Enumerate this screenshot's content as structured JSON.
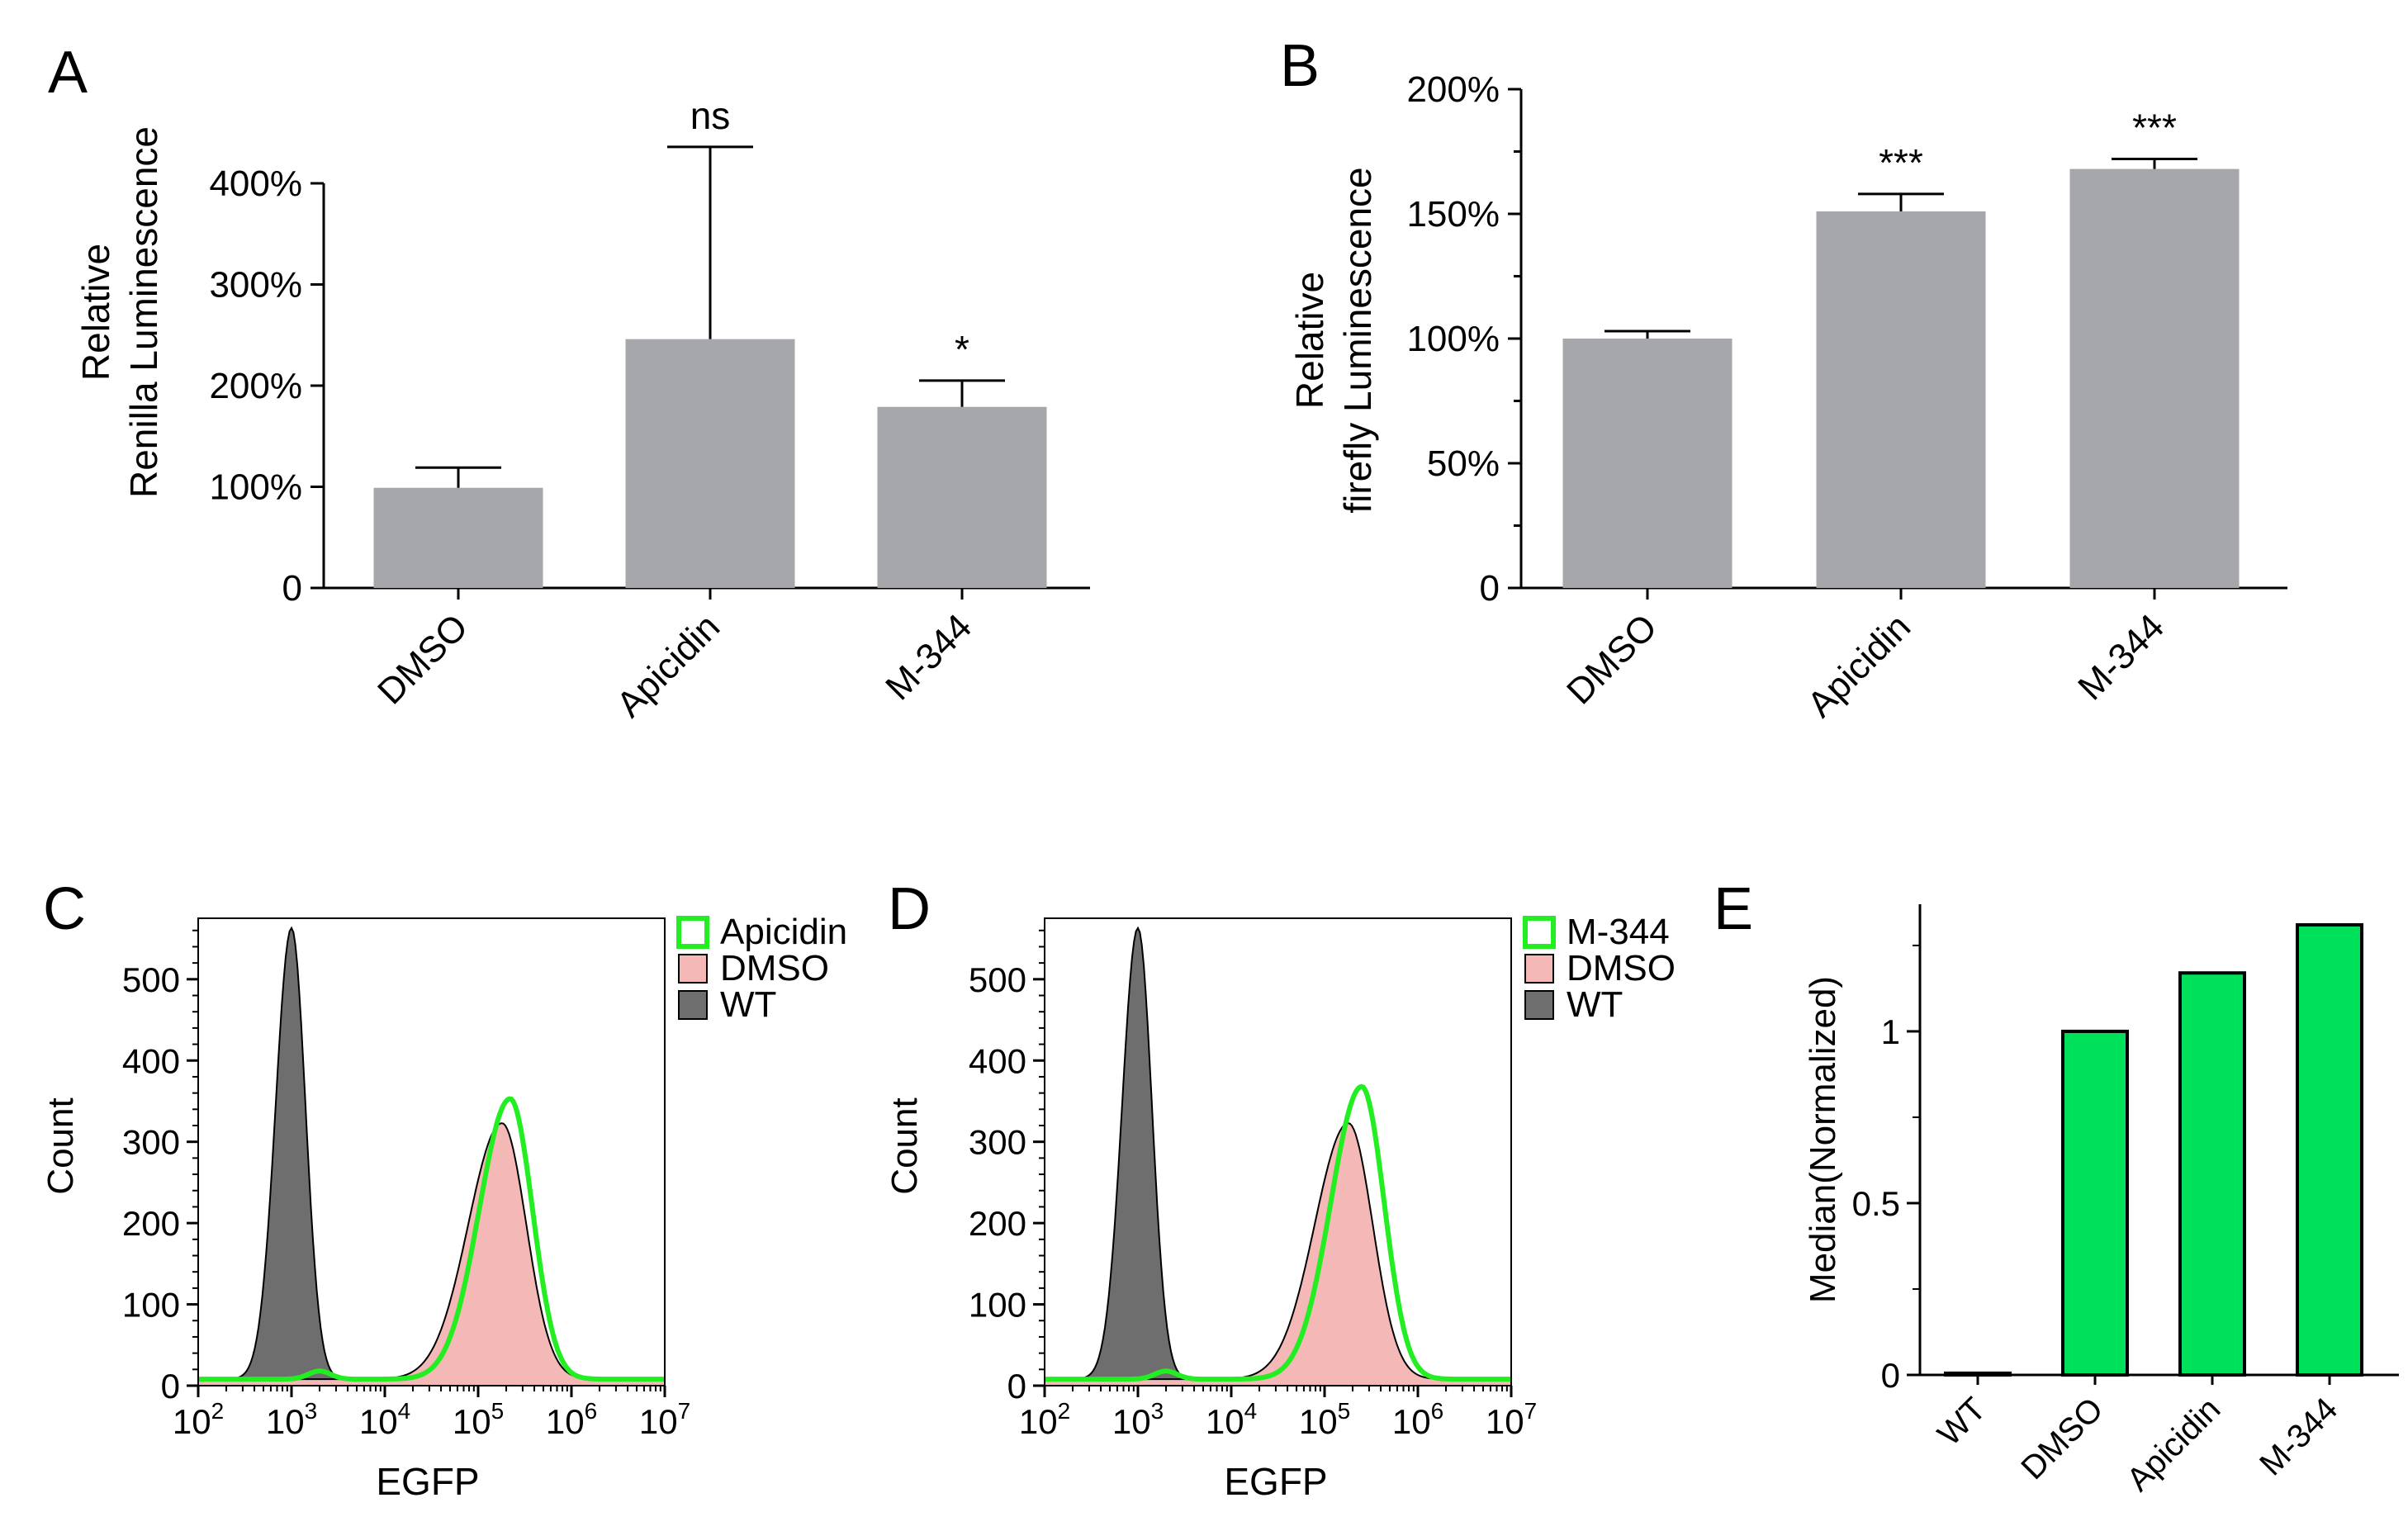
{
  "colors": {
    "bar_gray": "#a6a7ab",
    "bar_green": "#00e05a",
    "edge_dark": "#000000",
    "wt_fill": "#6e6e6e",
    "dmso_fill": "#f4b9b6",
    "green_line": "#22ee22"
  },
  "panels": {
    "A": {
      "letter": "A",
      "ylabel_line1": "Relative",
      "ylabel_line2": "Renilla Luminescence",
      "tick_labels": [
        "0",
        "100%",
        "200%",
        "300%",
        "400%"
      ],
      "sig": [
        "",
        "ns",
        "*"
      ]
    },
    "B": {
      "letter": "B",
      "ylabel_line1": "Relative",
      "ylabel_line2": "firefly Luminescence",
      "tick_labels": [
        "0",
        "50%",
        "100%",
        "150%",
        "200%"
      ],
      "sig": [
        "",
        "***",
        "***"
      ]
    },
    "C": {
      "letter": "C",
      "ylabel": "Count",
      "xlabel": "EGFP",
      "y_tick_labels": [
        "0",
        "100",
        "200",
        "300",
        "400",
        "500"
      ],
      "legend": [
        "Apicidin",
        "DMSO",
        "WT"
      ]
    },
    "D": {
      "letter": "D",
      "ylabel": "Count",
      "xlabel": "EGFP",
      "y_tick_labels": [
        "0",
        "100",
        "200",
        "300",
        "400",
        "500"
      ],
      "legend": [
        "M-344",
        "DMSO",
        "WT"
      ]
    },
    "E": {
      "letter": "E",
      "ylabel": "Median(Normalized)",
      "tick_labels": [
        "0",
        "0.5",
        "1"
      ]
    }
  },
  "chart_data": [
    {
      "panel": "A",
      "type": "bar",
      "categories": [
        "DMSO",
        "Apicidin",
        "M-344"
      ],
      "values": [
        99,
        246,
        179
      ],
      "errors": [
        20,
        190,
        26
      ],
      "ylim": [
        0,
        400
      ],
      "yunit": "%",
      "significance": [
        "",
        "ns",
        "*"
      ]
    },
    {
      "panel": "B",
      "type": "bar",
      "categories": [
        "DMSO",
        "Apicidin",
        "M-344"
      ],
      "values": [
        100,
        151,
        168
      ],
      "errors": [
        3,
        7,
        4
      ],
      "ylim": [
        0,
        200
      ],
      "yunit": "%",
      "significance": [
        "",
        "***",
        "***"
      ]
    },
    {
      "panel": "C",
      "type": "area",
      "x_scale": "log10",
      "xlim": [
        100,
        10000000
      ],
      "ylim": [
        0,
        575
      ],
      "series": [
        {
          "name": "WT",
          "peak_x": 1000,
          "peak_count": 555
        },
        {
          "name": "DMSO",
          "peak_x": 180000,
          "peak_count": 315
        },
        {
          "name": "Apicidin",
          "peak_x": 220000,
          "peak_count": 345
        }
      ]
    },
    {
      "panel": "D",
      "type": "area",
      "x_scale": "log10",
      "xlim": [
        100,
        10000000
      ],
      "ylim": [
        0,
        575
      ],
      "series": [
        {
          "name": "WT",
          "peak_x": 1000,
          "peak_count": 555
        },
        {
          "name": "DMSO",
          "peak_x": 180000,
          "peak_count": 315
        },
        {
          "name": "M-344",
          "peak_x": 250000,
          "peak_count": 360
        }
      ]
    },
    {
      "panel": "E",
      "type": "bar",
      "categories": [
        "WT",
        "DMSO",
        "Apicidin",
        "M-344"
      ],
      "values": [
        0.005,
        1.0,
        1.17,
        1.31
      ],
      "ylim": [
        0,
        1.37
      ]
    }
  ]
}
